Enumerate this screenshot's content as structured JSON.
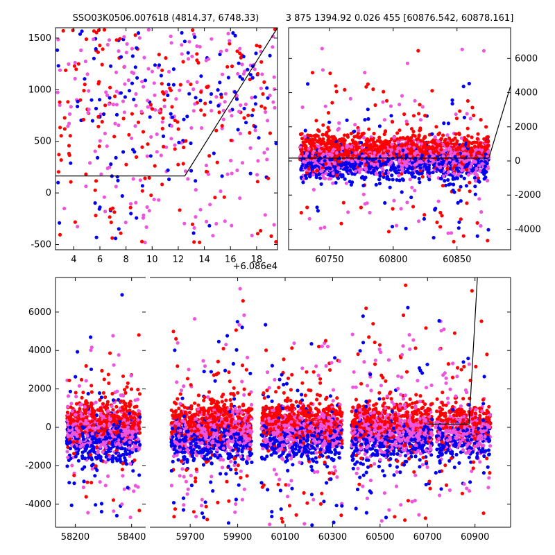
{
  "titles": {
    "left": "SSO03K0506.007618 (4814.37, 6748.33)",
    "right": "3 875 1394.92 0.026 455 [60876.542, 60878.161]"
  },
  "chart_data": [
    {
      "type": "scatter",
      "panel": "top-left",
      "xlim": [
        2.6,
        19.6
      ],
      "ylim": [
        -550,
        1600
      ],
      "x_offset_label": "+6.086e4",
      "x_ticks": [
        4,
        6,
        8,
        10,
        12,
        14,
        16,
        18
      ],
      "y_ticks": [
        -500,
        0,
        500,
        1000,
        1500
      ],
      "series_colors": [
        "#ff0000",
        "#0000ee",
        "#ee55dd"
      ],
      "model_line": [
        [
          2.6,
          165
        ],
        [
          12.5,
          165
        ],
        [
          19.6,
          1600
        ]
      ]
    },
    {
      "type": "scatter",
      "panel": "top-right",
      "xlim": [
        60718,
        60892
      ],
      "ylim": [
        -5200,
        7800
      ],
      "x_ticks": [
        60750,
        60800,
        60850
      ],
      "y_ticks": [
        -4000,
        -2000,
        0,
        2000,
        4000,
        6000
      ],
      "y_axis_side": "right",
      "series_colors": [
        "#ff0000",
        "#0000ee",
        "#ee55dd"
      ],
      "model_line": [
        [
          60718,
          165
        ],
        [
          60875,
          165
        ],
        [
          60892,
          4400
        ]
      ]
    },
    {
      "type": "scatter",
      "panel": "bottom",
      "broken_x_axis": true,
      "segments": [
        {
          "xlim": [
            58130,
            58450
          ],
          "x_ticks": [
            58200,
            58400
          ]
        },
        {
          "xlim": [
            59530,
            61050
          ],
          "x_ticks": [
            59700,
            59900,
            60100,
            60300,
            60500,
            60700,
            60900
          ]
        }
      ],
      "ylim": [
        -5200,
        7800
      ],
      "y_ticks": [
        -4000,
        -2000,
        0,
        2000,
        4000,
        6000
      ],
      "series_colors": [
        "#ff0000",
        "#0000ee",
        "#ee55dd"
      ],
      "clusters": [
        {
          "x": 58300,
          "spread": 130
        },
        {
          "x": 59790,
          "spread": 170
        },
        {
          "x": 60170,
          "spread": 170
        },
        {
          "x": 60550,
          "spread": 170
        },
        {
          "x": 60850,
          "spread": 115
        }
      ],
      "model_line": [
        [
          60700,
          165
        ],
        [
          60875,
          165
        ],
        [
          60910,
          7800
        ]
      ]
    }
  ]
}
